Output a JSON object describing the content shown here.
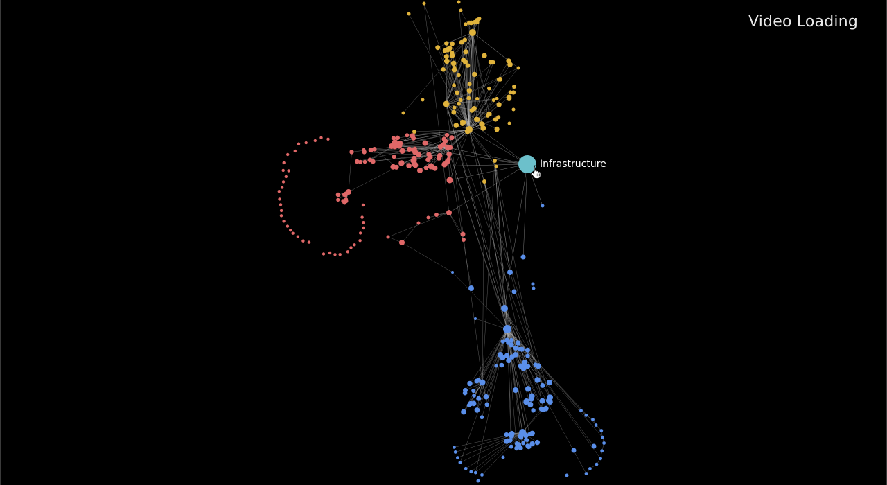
{
  "status_text": "Video Loading",
  "graph": {
    "highlighted_node": {
      "label": "Infrastructure",
      "color": "#6cc0cb"
    },
    "clusters": [
      {
        "id": "yellow",
        "color": "#e0b33c"
      },
      {
        "id": "red",
        "color": "#e06868"
      },
      {
        "id": "blue",
        "color": "#5a8fea"
      }
    ],
    "edge_color": "#cfcfcf"
  }
}
